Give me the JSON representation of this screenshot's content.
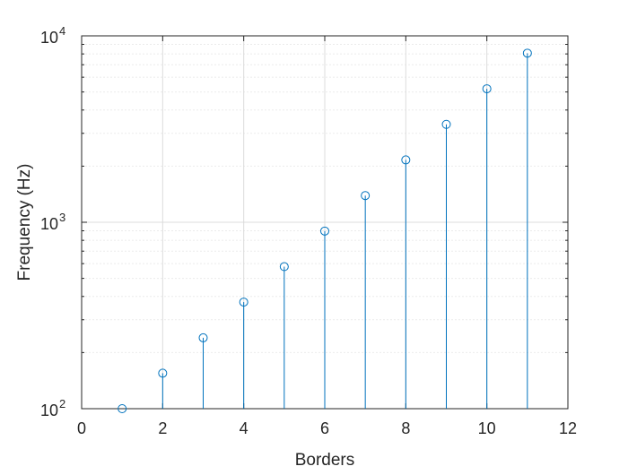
{
  "chart_data": {
    "type": "stem",
    "xlabel": "Borders",
    "ylabel": "Frequency (Hz)",
    "xlim": [
      0,
      12
    ],
    "ylim": [
      100,
      10000
    ],
    "yscale": "log",
    "grid": true,
    "x": [
      1,
      2,
      3,
      4,
      5,
      6,
      7,
      8,
      9,
      10,
      11
    ],
    "y": [
      100,
      155,
      240,
      373,
      578,
      897,
      1391,
      2160,
      3351,
      5200,
      8073
    ],
    "x_ticks": [
      0,
      2,
      4,
      6,
      8,
      10,
      12
    ],
    "y_ticks": [
      {
        "value": 100,
        "base": "10",
        "exponent": "2"
      },
      {
        "value": 1000,
        "base": "10",
        "exponent": "3"
      },
      {
        "value": 10000,
        "base": "10",
        "exponent": "4"
      }
    ],
    "series_color": "#0072BD",
    "marker": "open-circle"
  }
}
